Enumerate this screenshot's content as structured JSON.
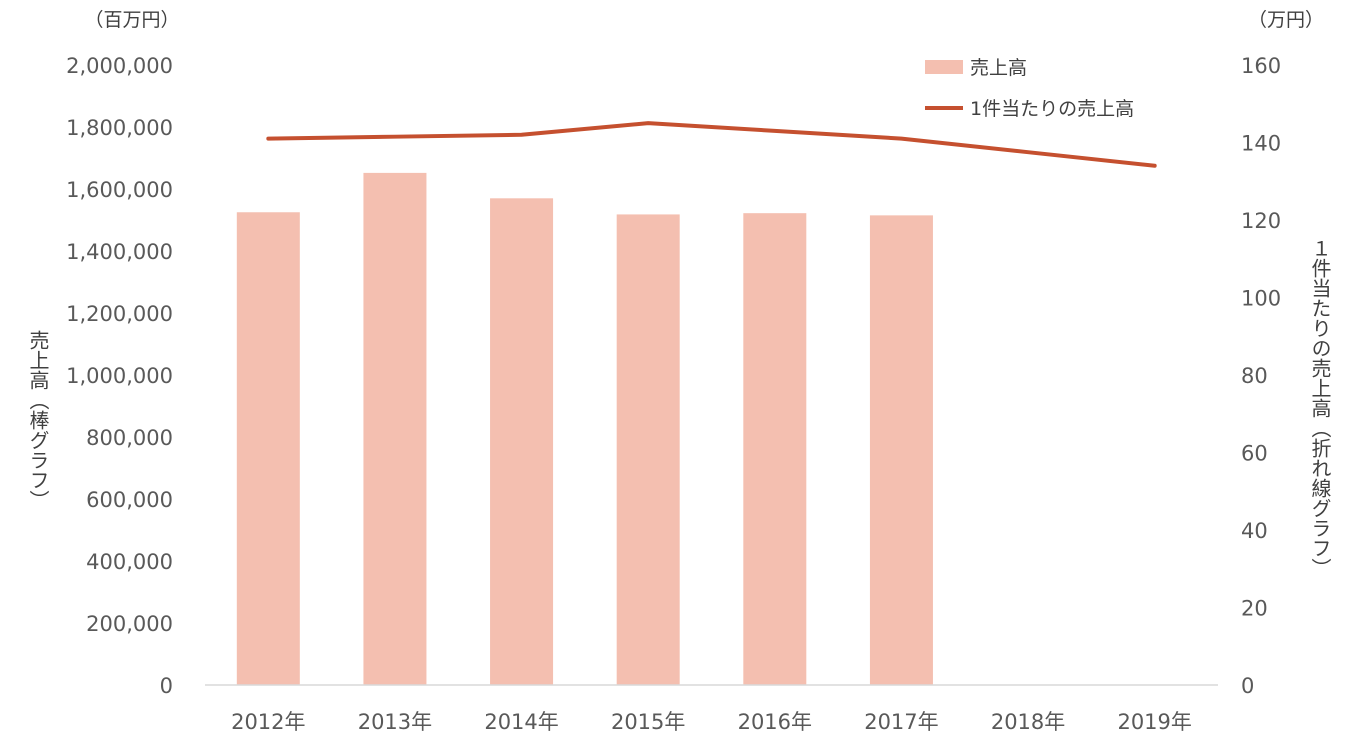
{
  "chart_data": {
    "type": "bar",
    "categories": [
      "2012年",
      "2013年",
      "2014年",
      "2015年",
      "2016年",
      "2017年",
      "2018年",
      "2019年"
    ],
    "series": [
      {
        "name": "売上高",
        "type": "bar",
        "axis": "left",
        "color": "#F4BFB0",
        "values": [
          1525000,
          1652000,
          1570000,
          1518000,
          1522000,
          1515000,
          null,
          null
        ]
      },
      {
        "name": "1件当たりの売上高",
        "type": "line",
        "axis": "right",
        "color": "#C5502F",
        "values": [
          141,
          141.5,
          142,
          145,
          143,
          141,
          137.5,
          134
        ]
      }
    ],
    "y_left": {
      "unit": "（百万円）",
      "label": "売上高（棒グラフ）",
      "ylim": [
        0,
        2000000
      ],
      "ticks": [
        "0",
        "200,000",
        "400,000",
        "600,000",
        "800,000",
        "1,000,000",
        "1,200,000",
        "1,400,000",
        "1,600,000",
        "1,800,000",
        "2,000,000"
      ]
    },
    "y_right": {
      "unit": "（万円）",
      "label": "１件当たりの売上高（折れ線グラフ）",
      "ylim": [
        0,
        160
      ],
      "ticks": [
        "0",
        "20",
        "40",
        "60",
        "80",
        "100",
        "120",
        "140",
        "160"
      ]
    },
    "grid": false,
    "legend": "top-right"
  }
}
